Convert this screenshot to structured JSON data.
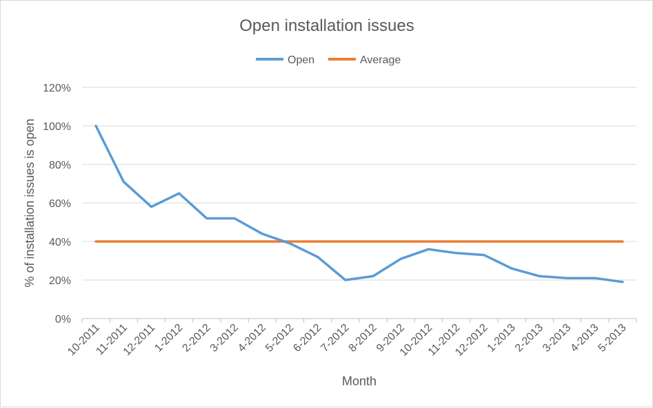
{
  "chart_data": {
    "type": "line",
    "title": "Open installation issues",
    "xlabel": "Month",
    "ylabel": "% of installation issues is open",
    "ylim": [
      0,
      1.2
    ],
    "yticks": [
      "0%",
      "20%",
      "40%",
      "60%",
      "80%",
      "100%",
      "120%"
    ],
    "categories": [
      "10-2011",
      "11-2011",
      "12-2011",
      "1-2012",
      "2-2012",
      "3-2012",
      "4-2012",
      "5-2012",
      "6-2012",
      "7-2012",
      "8-2012",
      "9-2012",
      "10-2012",
      "11-2012",
      "12-2012",
      "1-2013",
      "2-2013",
      "3-2013",
      "4-2013",
      "5-2013"
    ],
    "series": [
      {
        "name": "Open",
        "color": "#5b9bd5",
        "values": [
          1.0,
          0.71,
          0.58,
          0.65,
          0.52,
          0.52,
          0.44,
          0.39,
          0.32,
          0.2,
          0.22,
          0.31,
          0.36,
          0.34,
          0.33,
          0.26,
          0.22,
          0.21,
          0.21,
          0.19
        ]
      },
      {
        "name": "Average",
        "color": "#ed7d31",
        "values": [
          0.4,
          0.4,
          0.4,
          0.4,
          0.4,
          0.4,
          0.4,
          0.4,
          0.4,
          0.4,
          0.4,
          0.4,
          0.4,
          0.4,
          0.4,
          0.4,
          0.4,
          0.4,
          0.4,
          0.4
        ]
      }
    ],
    "grid": true,
    "legend": "top-center",
    "gridline_color": "#d9d9d9",
    "axis_color": "#bfbfbf"
  }
}
